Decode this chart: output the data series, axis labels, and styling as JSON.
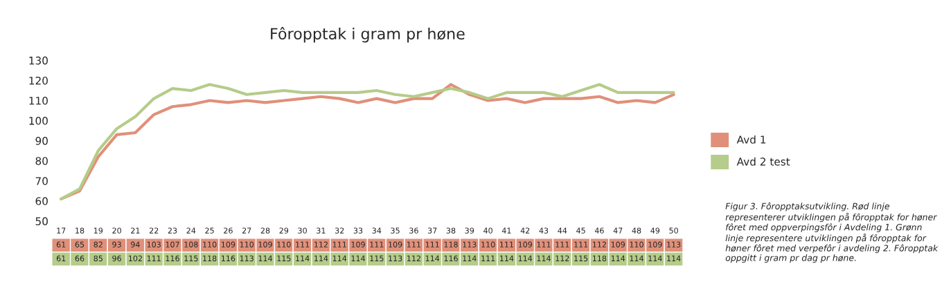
{
  "chart_data": {
    "type": "line",
    "title": "Fôropptak i gram pr høne",
    "categories": [
      "17",
      "18",
      "19",
      "20",
      "21",
      "22",
      "23",
      "24",
      "25",
      "26",
      "27",
      "28",
      "29",
      "30",
      "31",
      "32",
      "33",
      "34",
      "35",
      "36",
      "37",
      "38",
      "39",
      "40",
      "41",
      "42",
      "43",
      "44",
      "45",
      "46",
      "47",
      "48",
      "49",
      "50"
    ],
    "series": [
      {
        "name": "Avd 1",
        "color": "#e0907a",
        "values": [
          61,
          65,
          82,
          93,
          94,
          103,
          107,
          108,
          110,
          109,
          110,
          109,
          110,
          111,
          112,
          111,
          109,
          111,
          109,
          111,
          111,
          118,
          113,
          110,
          111,
          109,
          111,
          111,
          111,
          112,
          109,
          110,
          109,
          113
        ]
      },
      {
        "name": "Avd 2 test",
        "color": "#b5cc8a",
        "values": [
          61,
          66,
          85,
          96,
          102,
          111,
          116,
          115,
          118,
          116,
          113,
          114,
          115,
          114,
          114,
          114,
          114,
          115,
          113,
          112,
          114,
          116,
          114,
          111,
          114,
          114,
          114,
          112,
          115,
          118,
          114,
          114,
          114,
          114
        ]
      }
    ],
    "ylim": [
      50,
      130
    ],
    "yticks": [
      50,
      60,
      70,
      80,
      90,
      100,
      110,
      120,
      130
    ],
    "grid": false,
    "legend": "right",
    "marker": "none",
    "line_style": "solid",
    "data_labels": true,
    "annotations": [
      "Figur 3. Fôropptaksutvikling. Rød linje representerer utviklingen på fôropptak for høner fôret med oppverpingsfôr i Avdeling 1. Grønn linje representere utviklingen på fôropptak for høner fôret med verpefôr i avdeling 2. Fôropptak oppgitt i gram pr dag pr høne."
    ]
  }
}
